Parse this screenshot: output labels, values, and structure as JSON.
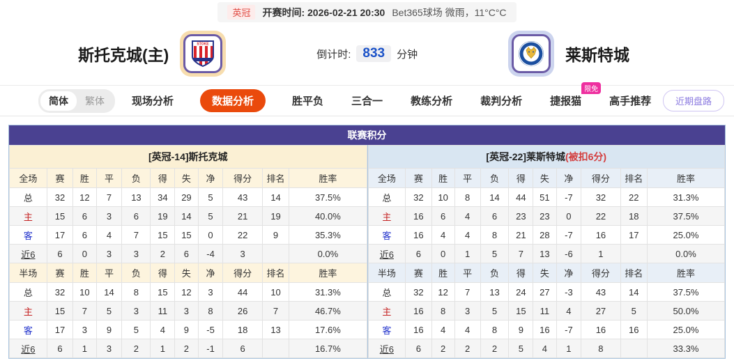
{
  "top_bar": {
    "league": "英冠",
    "kickoff_label": "开赛时间:",
    "kickoff_time": "2026-02-21 20:30",
    "venue_weather": "Bet365球场 微雨，11°C°C"
  },
  "match_header": {
    "home_team": "斯托克城(主)",
    "away_team": "莱斯特城",
    "countdown_label": "倒计时:",
    "countdown_value": "833",
    "countdown_unit": "分钟"
  },
  "nav": {
    "lang_simplified": "简体",
    "lang_traditional": "繁体",
    "tabs": [
      {
        "id": "live-analysis",
        "label": "现场分析",
        "active": false
      },
      {
        "id": "data-analysis",
        "label": "数据分析",
        "active": true
      },
      {
        "id": "win-draw-lose",
        "label": "胜平负",
        "active": false
      },
      {
        "id": "three-in-one",
        "label": "三合一",
        "active": false
      },
      {
        "id": "coach-analysis",
        "label": "教练分析",
        "active": false
      },
      {
        "id": "referee-analysis",
        "label": "裁判分析",
        "active": false
      },
      {
        "id": "jiebao-cat",
        "label": "捷报猫",
        "active": false,
        "badge": "限免"
      },
      {
        "id": "expert-picks",
        "label": "高手推荐",
        "active": false
      }
    ],
    "recent_trend_button": "近期盘路"
  },
  "table": {
    "title": "联赛积分",
    "columns_full": [
      "全场",
      "赛",
      "胜",
      "平",
      "负",
      "得",
      "失",
      "净",
      "得分",
      "排名",
      "胜率"
    ],
    "columns_half": [
      "半场",
      "赛",
      "胜",
      "平",
      "负",
      "得",
      "失",
      "净",
      "得分",
      "排名",
      "胜率"
    ],
    "home": {
      "header": "[英冠-14]斯托克城",
      "header_note": "",
      "full": [
        {
          "type": "total",
          "label": "总",
          "cells": [
            "32",
            "12",
            "7",
            "13",
            "34",
            "29",
            "5",
            "43",
            "14",
            "37.5%"
          ]
        },
        {
          "type": "home",
          "label": "主",
          "cells": [
            "15",
            "6",
            "3",
            "6",
            "19",
            "14",
            "5",
            "21",
            "19",
            "40.0%"
          ]
        },
        {
          "type": "away",
          "label": "客",
          "cells": [
            "17",
            "6",
            "4",
            "7",
            "15",
            "15",
            "0",
            "22",
            "9",
            "35.3%"
          ]
        },
        {
          "type": "recent",
          "label": "近6",
          "cells": [
            "6",
            "0",
            "3",
            "3",
            "2",
            "6",
            "-4",
            "3",
            "",
            "0.0%"
          ]
        }
      ],
      "half": [
        {
          "type": "total",
          "label": "总",
          "cells": [
            "32",
            "10",
            "14",
            "8",
            "15",
            "12",
            "3",
            "44",
            "10",
            "31.3%"
          ]
        },
        {
          "type": "home",
          "label": "主",
          "cells": [
            "15",
            "7",
            "5",
            "3",
            "11",
            "3",
            "8",
            "26",
            "7",
            "46.7%"
          ]
        },
        {
          "type": "away",
          "label": "客",
          "cells": [
            "17",
            "3",
            "9",
            "5",
            "4",
            "9",
            "-5",
            "18",
            "13",
            "17.6%"
          ]
        },
        {
          "type": "recent",
          "label": "近6",
          "cells": [
            "6",
            "1",
            "3",
            "2",
            "1",
            "2",
            "-1",
            "6",
            "",
            "16.7%"
          ]
        }
      ]
    },
    "away": {
      "header": "[英冠-22]莱斯特城",
      "header_note": "(被扣6分)",
      "full": [
        {
          "type": "total",
          "label": "总",
          "cells": [
            "32",
            "10",
            "8",
            "14",
            "44",
            "51",
            "-7",
            "32",
            "22",
            "31.3%"
          ]
        },
        {
          "type": "home",
          "label": "主",
          "cells": [
            "16",
            "6",
            "4",
            "6",
            "23",
            "23",
            "0",
            "22",
            "18",
            "37.5%"
          ]
        },
        {
          "type": "away",
          "label": "客",
          "cells": [
            "16",
            "4",
            "4",
            "8",
            "21",
            "28",
            "-7",
            "16",
            "17",
            "25.0%"
          ]
        },
        {
          "type": "recent",
          "label": "近6",
          "cells": [
            "6",
            "0",
            "1",
            "5",
            "7",
            "13",
            "-6",
            "1",
            "",
            "0.0%"
          ]
        }
      ],
      "half": [
        {
          "type": "total",
          "label": "总",
          "cells": [
            "32",
            "12",
            "7",
            "13",
            "24",
            "27",
            "-3",
            "43",
            "14",
            "37.5%"
          ]
        },
        {
          "type": "home",
          "label": "主",
          "cells": [
            "16",
            "8",
            "3",
            "5",
            "15",
            "11",
            "4",
            "27",
            "5",
            "50.0%"
          ]
        },
        {
          "type": "away",
          "label": "客",
          "cells": [
            "16",
            "4",
            "4",
            "8",
            "9",
            "16",
            "-7",
            "16",
            "16",
            "25.0%"
          ]
        },
        {
          "type": "recent",
          "label": "近6",
          "cells": [
            "6",
            "2",
            "2",
            "2",
            "5",
            "4",
            "1",
            "8",
            "",
            "33.3%"
          ]
        }
      ]
    }
  },
  "colors": {
    "accent_orange": "#ea4a0c",
    "panel_header_purple": "#4a4191",
    "home_row_red": "#c52222",
    "away_row_blue": "#2233cc",
    "limited_free_pink": "#ee2f9f",
    "countdown_blue": "#1b52c8",
    "deduction_red": "#d43d3d"
  }
}
